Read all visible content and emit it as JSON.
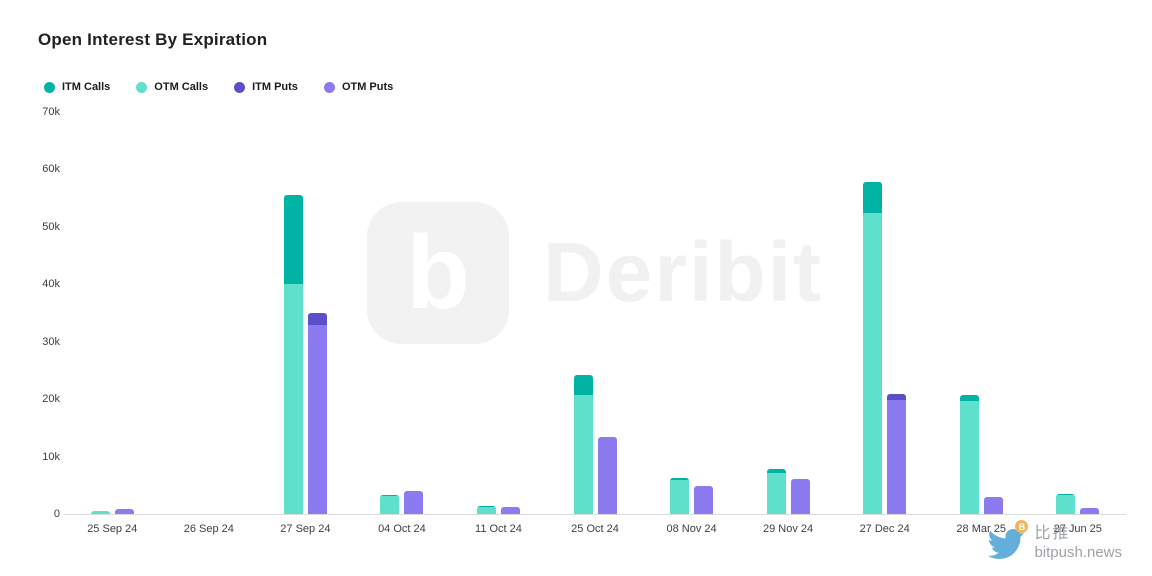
{
  "title": "Open Interest By Expiration",
  "legend": [
    {
      "label": "ITM Calls",
      "color": "#00b3a4"
    },
    {
      "label": "OTM Calls",
      "color": "#5fe0cd"
    },
    {
      "label": "ITM Puts",
      "color": "#5b4ec9"
    },
    {
      "label": "OTM Puts",
      "color": "#8b7af0"
    }
  ],
  "watermark": {
    "brand": "Deribit",
    "logo_glyph": "b"
  },
  "footer": {
    "site_cn": "比推",
    "site": "bitpush.news"
  },
  "chart_data": {
    "type": "bar",
    "stacked": true,
    "title": "Open Interest By Expiration",
    "categories": [
      "25 Sep 24",
      "26 Sep 24",
      "27 Sep 24",
      "04 Oct 24",
      "11 Oct 24",
      "25 Oct 24",
      "08 Nov 24",
      "29 Nov 24",
      "27 Dec 24",
      "28 Mar 25",
      "27 Jun 25"
    ],
    "series": [
      {
        "name": "ITM Calls",
        "stack": "calls",
        "color": "#00b3a4",
        "values": [
          0,
          0,
          15500,
          200,
          100,
          3500,
          400,
          600,
          5400,
          1000,
          200
        ]
      },
      {
        "name": "OTM Calls",
        "stack": "calls",
        "color": "#5fe0cd",
        "values": [
          500,
          0,
          40000,
          3100,
          1300,
          20700,
          5900,
          7200,
          52400,
          19700,
          3300
        ]
      },
      {
        "name": "ITM Puts",
        "stack": "puts",
        "color": "#5b4ec9",
        "values": [
          0,
          0,
          2000,
          0,
          0,
          0,
          0,
          0,
          1000,
          0,
          0
        ]
      },
      {
        "name": "OTM Puts",
        "stack": "puts",
        "color": "#8b7af0",
        "values": [
          900,
          0,
          33000,
          4000,
          1200,
          13400,
          4900,
          6100,
          19900,
          3000,
          1000
        ]
      }
    ],
    "ylim": [
      0,
      70000
    ],
    "yticks": [
      "0",
      "10k",
      "20k",
      "30k",
      "40k",
      "50k",
      "60k",
      "70k"
    ],
    "grid": false,
    "legend_position": "top-left"
  }
}
